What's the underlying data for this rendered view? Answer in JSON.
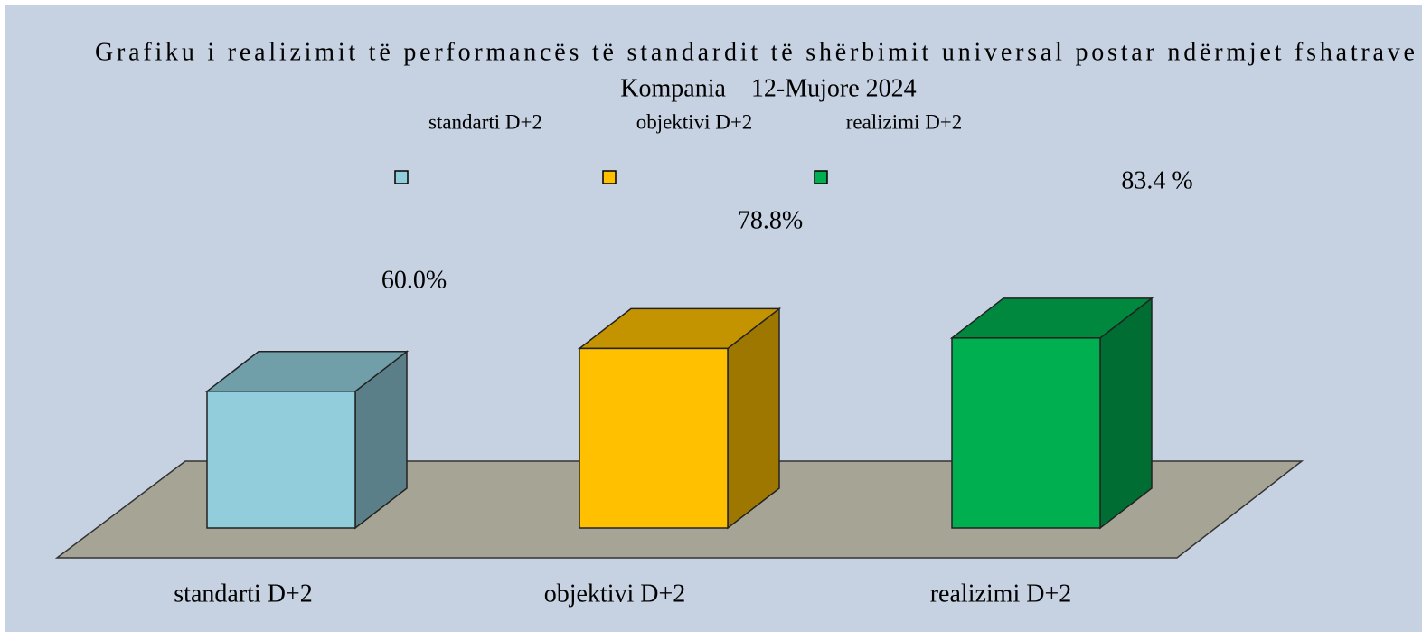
{
  "chart_data": {
    "type": "bar3d",
    "title": "Grafiku i realizimit të performancës të standardit të shërbimit universal postar ndërmjet fshatrave",
    "subtitle": "Kompania    12-Mujore 2024",
    "categories": [
      "standarti D+2",
      "objektivi D+2",
      "realizimi D+2"
    ],
    "values": [
      60.0,
      78.8,
      83.4
    ],
    "value_labels": [
      "60.0%",
      "78.8%",
      "83.4 %"
    ],
    "colors": [
      "#92cddc",
      "#ffc000",
      "#00b050"
    ]
  }
}
